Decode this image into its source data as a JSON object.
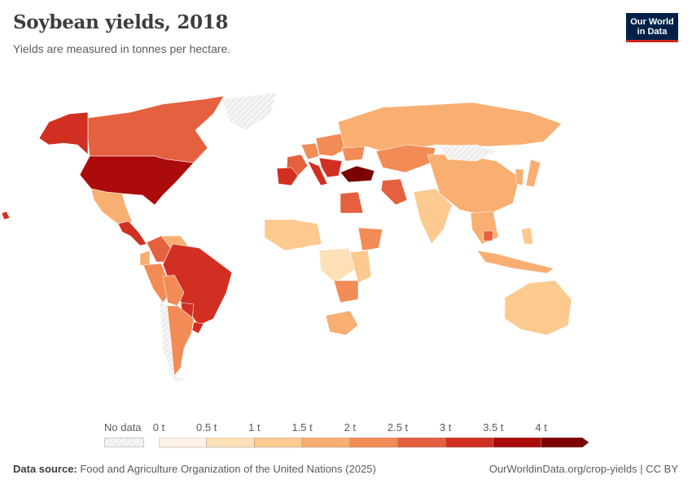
{
  "header": {
    "title": "Soybean yields, 2018",
    "subtitle": "Yields are measured in tonnes per hectare."
  },
  "logo": {
    "line1": "Our World",
    "line2": "in Data",
    "bg": "#002147",
    "accent": "#ce261e"
  },
  "legend": {
    "no_data_label": "No data",
    "ticks": [
      "0 t",
      "0.5 t",
      "1 t",
      "1.5 t",
      "2 t",
      "2.5 t",
      "3 t",
      "3.5 t",
      "4 t"
    ],
    "bins": [
      {
        "from": 0,
        "to": 0.5,
        "color": "#fef3e4"
      },
      {
        "from": 0.5,
        "to": 1,
        "color": "#fde0b8"
      },
      {
        "from": 1,
        "to": 1.5,
        "color": "#fcc98f"
      },
      {
        "from": 1.5,
        "to": 2,
        "color": "#f9ae72"
      },
      {
        "from": 2,
        "to": 2.5,
        "color": "#f38b57"
      },
      {
        "from": 2.5,
        "to": 3,
        "color": "#e5603f"
      },
      {
        "from": 3,
        "to": 3.5,
        "color": "#d22f23"
      },
      {
        "from": 3.5,
        "to": 4,
        "color": "#ac0b0c"
      },
      {
        "from": 4,
        "to": 4.5,
        "color": "#7b0000"
      }
    ]
  },
  "map_data": {
    "type": "choropleth",
    "metric_unit": "t",
    "regions": [
      {
        "name": "Canada",
        "value": 2.8
      },
      {
        "name": "Alaska",
        "value": 3.4
      },
      {
        "name": "United States",
        "value": 3.5
      },
      {
        "name": "Mexico",
        "value": 1.5
      },
      {
        "name": "Central America",
        "value": 3.1
      },
      {
        "name": "Colombia",
        "value": 2.7
      },
      {
        "name": "Venezuela",
        "value": 1.8
      },
      {
        "name": "Ecuador",
        "value": 1.7
      },
      {
        "name": "Peru",
        "value": 2.1
      },
      {
        "name": "Brazil",
        "value": 3.4
      },
      {
        "name": "Bolivia",
        "value": 2.1
      },
      {
        "name": "Paraguay",
        "value": 3.3
      },
      {
        "name": "Uruguay",
        "value": 3.2
      },
      {
        "name": "Argentina",
        "value": 2.3
      },
      {
        "name": "Chile",
        "value": null
      },
      {
        "name": "Greenland",
        "value": null
      },
      {
        "name": "France",
        "value": 2.8
      },
      {
        "name": "Spain",
        "value": 3.0
      },
      {
        "name": "Italy",
        "value": 3.4
      },
      {
        "name": "Germany",
        "value": 2.3
      },
      {
        "name": "Eastern Europe",
        "value": 2.1
      },
      {
        "name": "Ukraine",
        "value": 2.4
      },
      {
        "name": "Balkans",
        "value": 3.1
      },
      {
        "name": "Turkey",
        "value": 4.3
      },
      {
        "name": "Russia",
        "value": 1.5
      },
      {
        "name": "Kazakhstan",
        "value": 2.3
      },
      {
        "name": "Iran",
        "value": 2.6
      },
      {
        "name": "Egypt",
        "value": 2.9
      },
      {
        "name": "Ethiopia",
        "value": 2.1
      },
      {
        "name": "West Africa",
        "value": 1.0
      },
      {
        "name": "Central Africa",
        "value": 0.7
      },
      {
        "name": "East Africa",
        "value": 1.2
      },
      {
        "name": "Zambia",
        "value": 2.1
      },
      {
        "name": "South Africa",
        "value": 1.9
      },
      {
        "name": "India",
        "value": 1.1
      },
      {
        "name": "China",
        "value": 1.8
      },
      {
        "name": "Mongolia",
        "value": null
      },
      {
        "name": "Korea",
        "value": 1.5
      },
      {
        "name": "Japan",
        "value": 1.6
      },
      {
        "name": "Mainland Southeast Asia",
        "value": 1.8
      },
      {
        "name": "Cambodia",
        "value": 2.8
      },
      {
        "name": "Indonesia",
        "value": 1.5
      },
      {
        "name": "Philippines",
        "value": 1.2
      },
      {
        "name": "Australia",
        "value": 1.0
      },
      {
        "name": "Hawaii",
        "value": 3.3
      }
    ]
  },
  "footer": {
    "source_label": "Data source:",
    "source_text": " Food and Agriculture Organization of the United Nations (2025)",
    "url": "OurWorldinData.org/crop-yields | CC BY"
  }
}
